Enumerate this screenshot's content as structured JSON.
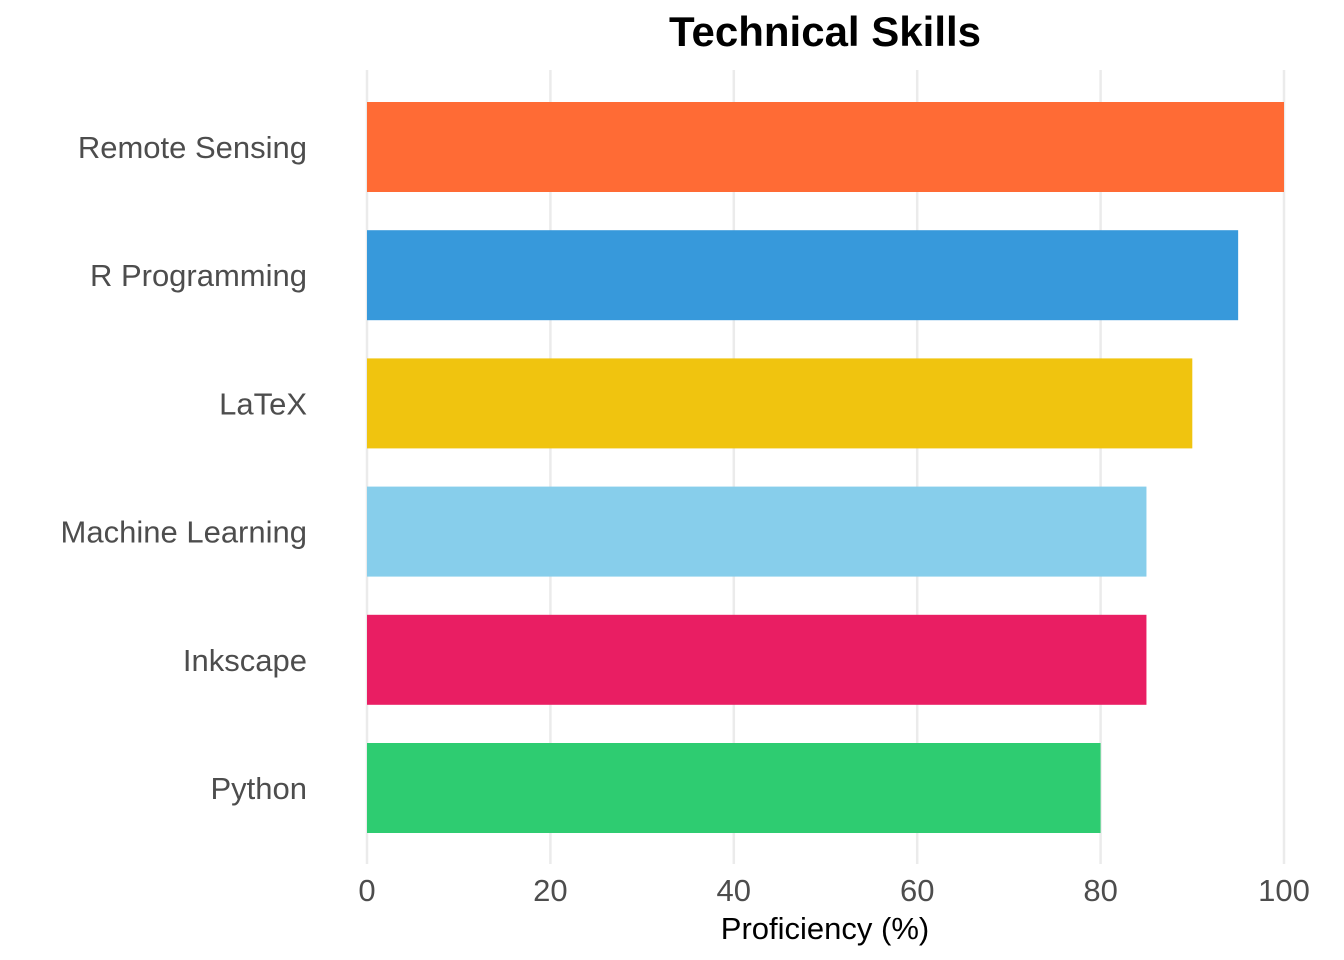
{
  "chart_data": {
    "type": "bar",
    "orientation": "horizontal",
    "title": "Technical Skills",
    "xlabel": "Proficiency (%)",
    "ylabel": "",
    "xlim": [
      0,
      100
    ],
    "x_ticks": [
      0,
      20,
      40,
      60,
      80,
      100
    ],
    "grid": true,
    "legend": "none",
    "categories": [
      "Remote Sensing",
      "R Programming",
      "LaTeX",
      "Machine Learning",
      "Inkscape",
      "Python"
    ],
    "values": [
      100,
      95,
      90,
      85,
      85,
      80
    ],
    "colors": [
      "#FF6B35",
      "#3799DB",
      "#F0C40F",
      "#87CEEB",
      "#E91E63",
      "#2ECC71"
    ]
  }
}
